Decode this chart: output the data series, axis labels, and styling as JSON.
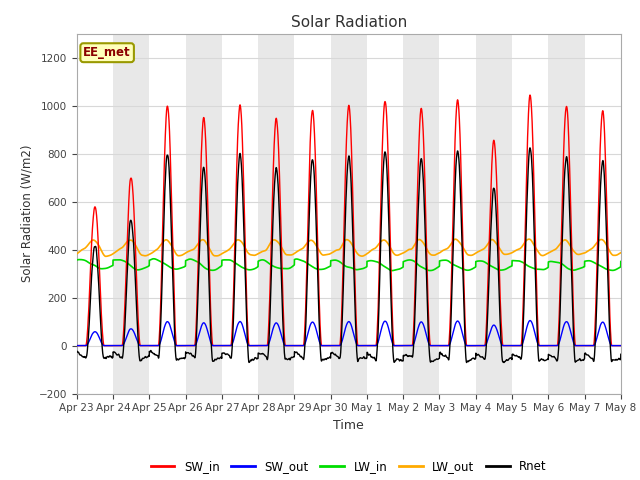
{
  "title": "Solar Radiation",
  "xlabel": "Time",
  "ylabel": "Solar Radiation (W/m2)",
  "ylim": [
    -200,
    1300
  ],
  "yticks": [
    -200,
    0,
    200,
    400,
    600,
    800,
    1000,
    1200
  ],
  "x_labels": [
    "Apr 23",
    "Apr 24",
    "Apr 25",
    "Apr 26",
    "Apr 27",
    "Apr 28",
    "Apr 29",
    "Apr 30",
    "May 1",
    "May 2",
    "May 3",
    "May 4",
    "May 5",
    "May 6",
    "May 7",
    "May 8"
  ],
  "station_label": "EE_met",
  "colors": {
    "SW_in": "#ff0000",
    "SW_out": "#0000ff",
    "LW_in": "#00dd00",
    "LW_out": "#ffaa00",
    "Rnet": "#000000"
  },
  "fig_bg": "#ffffff",
  "plot_bg": "#ffffff",
  "band_color_dark": "#e8e8e8",
  "grid_color": "#d8d8d8",
  "n_days": 15,
  "points_per_day": 288,
  "sw_in_peaks": [
    580,
    700,
    1000,
    940,
    1000,
    950,
    980,
    1000,
    1020,
    980,
    1030,
    850,
    1040,
    1000,
    980
  ],
  "lw_in_base": 340,
  "lw_out_base": 390,
  "night_rnet": -60
}
